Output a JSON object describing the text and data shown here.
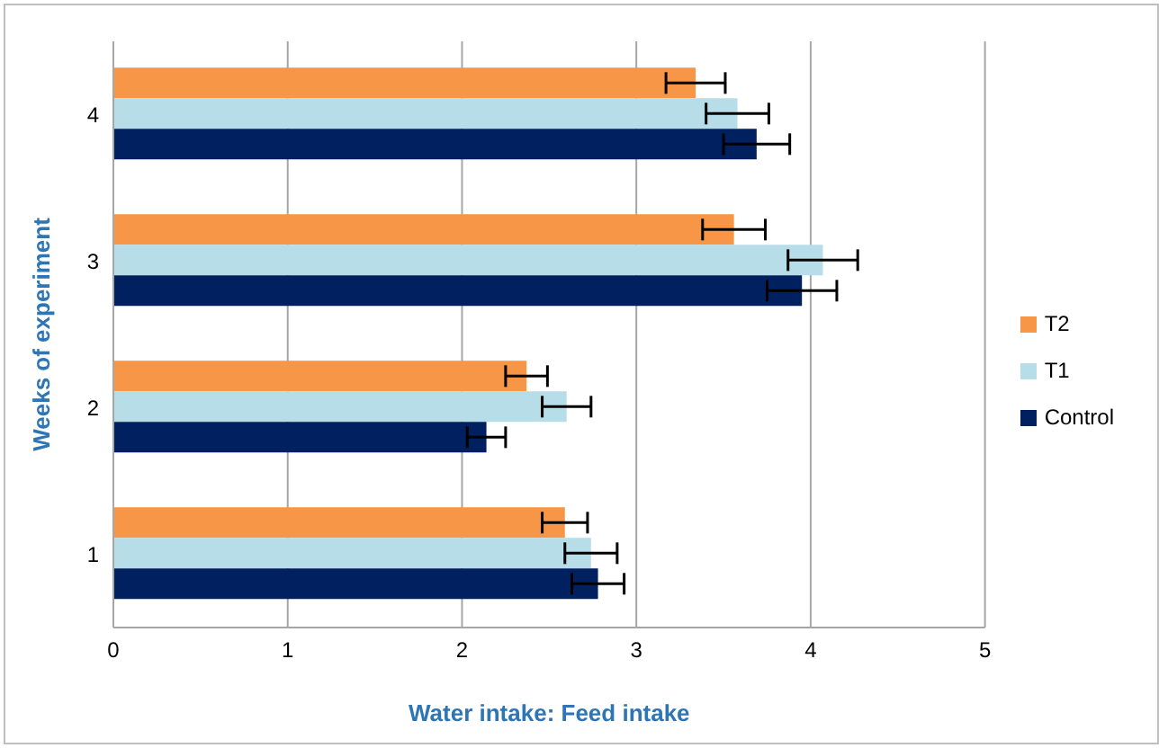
{
  "chart_data": {
    "type": "bar",
    "orientation": "horizontal",
    "xlabel": "Water intake: Feed intake",
    "ylabel": "Weeks of experiment",
    "categories": [
      "4",
      "3",
      "2",
      "1"
    ],
    "series": [
      {
        "name": "T2",
        "color": "#f79646",
        "values": [
          3.34,
          3.56,
          2.37,
          2.59
        ],
        "errors": [
          0.17,
          0.18,
          0.12,
          0.13
        ]
      },
      {
        "name": "T1",
        "color": "#b7dde8",
        "values": [
          3.58,
          4.07,
          2.6,
          2.74
        ],
        "errors": [
          0.18,
          0.2,
          0.14,
          0.15
        ]
      },
      {
        "name": "Control",
        "color": "#002060",
        "values": [
          3.69,
          3.95,
          2.14,
          2.78
        ],
        "errors": [
          0.19,
          0.2,
          0.11,
          0.15
        ]
      }
    ],
    "xlim": [
      0,
      5
    ],
    "xticks": [
      0,
      1,
      2,
      3,
      4,
      5
    ],
    "grid": "x",
    "legend": "right"
  }
}
